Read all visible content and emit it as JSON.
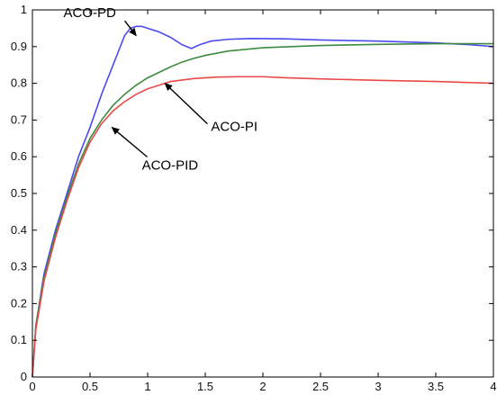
{
  "chart_data": {
    "type": "line",
    "title": "",
    "xlabel": "",
    "ylabel": "",
    "xlim": [
      0,
      4
    ],
    "ylim": [
      0,
      1
    ],
    "grid": false,
    "xticks": [
      0,
      0.5,
      1,
      1.5,
      2,
      2.5,
      3,
      3.5,
      4
    ],
    "xtick_labels": [
      "0",
      "0.5",
      "1",
      "1.5",
      "2",
      "2.5",
      "3",
      "3.5",
      "4"
    ],
    "yticks": [
      0,
      0.1,
      0.2,
      0.3,
      0.4,
      0.5,
      0.6,
      0.7,
      0.8,
      0.9,
      1
    ],
    "ytick_labels": [
      "0",
      "0.1",
      "0.2",
      "0.3",
      "0.4",
      "0.5",
      "0.6",
      "0.7",
      "0.8",
      "0.9",
      "1"
    ],
    "series": [
      {
        "name": "ACO-PD",
        "color": "#4b4bf0",
        "x": [
          0,
          0.03,
          0.1,
          0.2,
          0.3,
          0.4,
          0.5,
          0.6,
          0.7,
          0.75,
          0.8,
          0.85,
          0.9,
          0.95,
          1.0,
          1.05,
          1.1,
          1.2,
          1.3,
          1.38,
          1.45,
          1.55,
          1.7,
          1.9,
          2.2,
          2.5,
          3.0,
          3.5,
          3.8,
          4.0
        ],
        "y": [
          0,
          0.14,
          0.28,
          0.4,
          0.5,
          0.6,
          0.68,
          0.77,
          0.85,
          0.89,
          0.93,
          0.95,
          0.955,
          0.955,
          0.95,
          0.945,
          0.94,
          0.925,
          0.905,
          0.895,
          0.905,
          0.915,
          0.92,
          0.922,
          0.921,
          0.918,
          0.915,
          0.91,
          0.905,
          0.9
        ]
      },
      {
        "name": "ACO-PI",
        "color": "#3e8a3e",
        "x": [
          0,
          0.03,
          0.1,
          0.2,
          0.3,
          0.4,
          0.5,
          0.6,
          0.7,
          0.8,
          0.9,
          1.0,
          1.1,
          1.2,
          1.3,
          1.4,
          1.5,
          1.7,
          2.0,
          2.5,
          3.0,
          3.5,
          4.0
        ],
        "y": [
          0,
          0.14,
          0.27,
          0.39,
          0.49,
          0.58,
          0.65,
          0.7,
          0.74,
          0.77,
          0.795,
          0.815,
          0.83,
          0.845,
          0.858,
          0.868,
          0.876,
          0.888,
          0.897,
          0.903,
          0.906,
          0.908,
          0.908
        ]
      },
      {
        "name": "ACO-PID",
        "color": "#e84a4a",
        "x": [
          0,
          0.03,
          0.1,
          0.2,
          0.3,
          0.4,
          0.5,
          0.6,
          0.7,
          0.8,
          0.9,
          1.0,
          1.1,
          1.2,
          1.4,
          1.6,
          1.8,
          2.0,
          2.2,
          2.5,
          3.0,
          3.5,
          4.0
        ],
        "y": [
          0,
          0.13,
          0.26,
          0.38,
          0.48,
          0.57,
          0.64,
          0.69,
          0.725,
          0.75,
          0.77,
          0.785,
          0.795,
          0.805,
          0.813,
          0.817,
          0.818,
          0.818,
          0.815,
          0.812,
          0.808,
          0.805,
          0.8
        ]
      }
    ],
    "annotations": [
      {
        "text": "ACO-PD",
        "series": "ACO-PD",
        "text_at": [
          0.27,
          0.98
        ],
        "arrow_to": [
          0.9,
          0.93
        ]
      },
      {
        "text": "ACO-PI",
        "series": "ACO-PI",
        "text_at": [
          1.55,
          0.67
        ],
        "arrow_to": [
          1.15,
          0.8
        ]
      },
      {
        "text": "ACO-PID",
        "series": "ACO-PID",
        "text_at": [
          0.95,
          0.565
        ],
        "arrow_to": [
          0.69,
          0.68
        ]
      }
    ]
  }
}
